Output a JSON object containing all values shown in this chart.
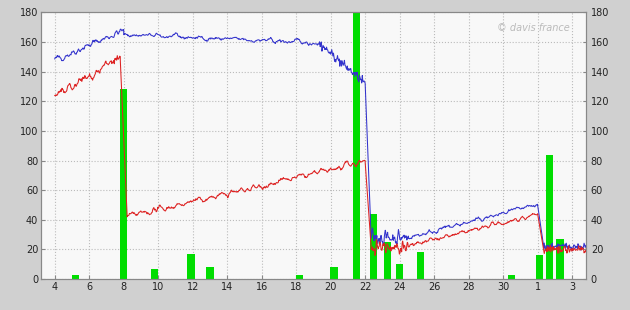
{
  "bg_color": "#d0d0d0",
  "plot_bg_color": "#f8f8f8",
  "grid_color": "#cccccc",
  "blue_color": "#3333cc",
  "red_color": "#dd2222",
  "green_color": "#00dd00",
  "watermark": "© davis france",
  "ylim": [
    0,
    180
  ],
  "yticks": [
    0,
    20,
    40,
    60,
    80,
    100,
    120,
    140,
    160,
    180
  ],
  "xtick_labels": [
    "4",
    "6",
    "8",
    "10",
    "12",
    "14",
    "16",
    "18",
    "20",
    "22",
    "24",
    "26",
    "28",
    "30",
    "1",
    "3"
  ],
  "xtick_positions": [
    0,
    2,
    4,
    6,
    8,
    10,
    12,
    14,
    16,
    18,
    20,
    22,
    24,
    26,
    28,
    30
  ],
  "xlim": [
    -0.8,
    30.8
  ],
  "bar_positions": [
    1.2,
    4.0,
    5.8,
    7.9,
    9.0,
    14.2,
    16.2,
    17.5,
    18.5,
    19.3,
    20.0,
    21.2,
    26.5,
    28.1,
    28.7,
    29.3
  ],
  "bar_heights": [
    3,
    128,
    7,
    17,
    8,
    3,
    8,
    190,
    44,
    25,
    10,
    18,
    3,
    16,
    84,
    27
  ],
  "bar_width": 0.42,
  "figsize": [
    6.3,
    3.1
  ],
  "dpi": 100
}
